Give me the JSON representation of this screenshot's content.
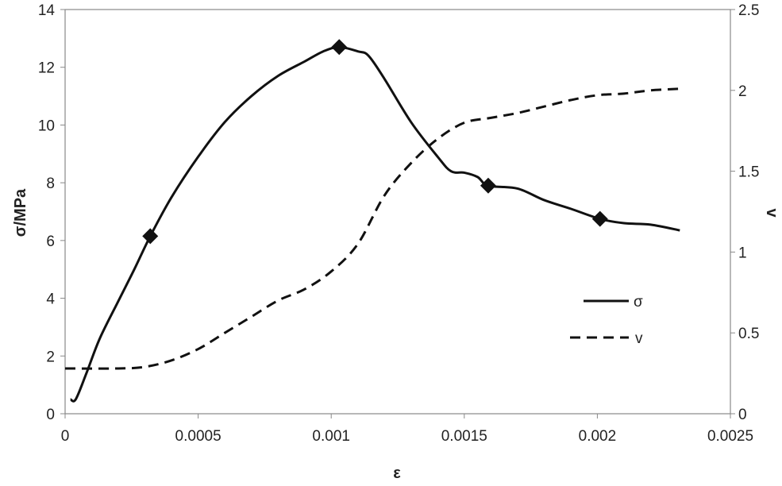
{
  "chart_data": {
    "type": "line",
    "title": "",
    "xlabel": "ε",
    "ylabel": "σ/MPa",
    "y2label": "v",
    "xlim": [
      0,
      0.0025
    ],
    "ylim": [
      0,
      14
    ],
    "y2lim": [
      0,
      2.5
    ],
    "x_ticks": [
      "0",
      "0.0005",
      "0.001",
      "0.0015",
      "0.002",
      "0.0025"
    ],
    "y_ticks": [
      "0",
      "2",
      "4",
      "6",
      "8",
      "10",
      "12",
      "14"
    ],
    "y2_ticks": [
      "0",
      "0.5",
      "1",
      "1.5",
      "2",
      "2.5"
    ],
    "grid": false,
    "legend": {
      "position": "right-middle",
      "entries": [
        "σ",
        "v"
      ]
    },
    "colors": {
      "line": "#111111"
    },
    "series": [
      {
        "name": "σ",
        "axis": "left",
        "style": "solid",
        "markers": [
          {
            "x": 0.00032,
            "y": 6.15
          },
          {
            "x": 0.00103,
            "y": 12.7
          },
          {
            "x": 0.00159,
            "y": 7.9
          },
          {
            "x": 0.00201,
            "y": 6.75
          }
        ],
        "points": [
          [
            2e-05,
            0.5
          ],
          [
            4e-05,
            0.5
          ],
          [
            8e-05,
            1.4
          ],
          [
            0.00013,
            2.6
          ],
          [
            0.0002,
            3.9
          ],
          [
            0.00026,
            5.0
          ],
          [
            0.00032,
            6.15
          ],
          [
            0.0004,
            7.5
          ],
          [
            0.0005,
            8.9
          ],
          [
            0.0006,
            10.1
          ],
          [
            0.0007,
            11.0
          ],
          [
            0.0008,
            11.7
          ],
          [
            0.0009,
            12.2
          ],
          [
            0.00097,
            12.55
          ],
          [
            0.00103,
            12.7
          ],
          [
            0.0011,
            12.55
          ],
          [
            0.00114,
            12.4
          ],
          [
            0.0012,
            11.6
          ],
          [
            0.0013,
            10.1
          ],
          [
            0.0014,
            8.9
          ],
          [
            0.00145,
            8.4
          ],
          [
            0.0015,
            8.35
          ],
          [
            0.00155,
            8.2
          ],
          [
            0.00159,
            7.9
          ],
          [
            0.0017,
            7.8
          ],
          [
            0.0018,
            7.4
          ],
          [
            0.0019,
            7.1
          ],
          [
            0.00201,
            6.75
          ],
          [
            0.0021,
            6.6
          ],
          [
            0.0022,
            6.55
          ],
          [
            0.00231,
            6.35
          ]
        ]
      },
      {
        "name": "v",
        "axis": "right",
        "style": "dashed",
        "points": [
          [
            0,
            0.28
          ],
          [
            0.0002,
            0.28
          ],
          [
            0.0003,
            0.29
          ],
          [
            0.0004,
            0.33
          ],
          [
            0.0005,
            0.4
          ],
          [
            0.0006,
            0.5
          ],
          [
            0.0007,
            0.6
          ],
          [
            0.0008,
            0.7
          ],
          [
            0.0009,
            0.77
          ],
          [
            0.001,
            0.88
          ],
          [
            0.0011,
            1.05
          ],
          [
            0.0012,
            1.35
          ],
          [
            0.0013,
            1.55
          ],
          [
            0.0014,
            1.7
          ],
          [
            0.0015,
            1.8
          ],
          [
            0.0016,
            1.83
          ],
          [
            0.0017,
            1.86
          ],
          [
            0.0018,
            1.9
          ],
          [
            0.0019,
            1.94
          ],
          [
            0.002,
            1.97
          ],
          [
            0.0021,
            1.98
          ],
          [
            0.0022,
            2.0
          ],
          [
            0.00231,
            2.01
          ]
        ]
      }
    ]
  }
}
